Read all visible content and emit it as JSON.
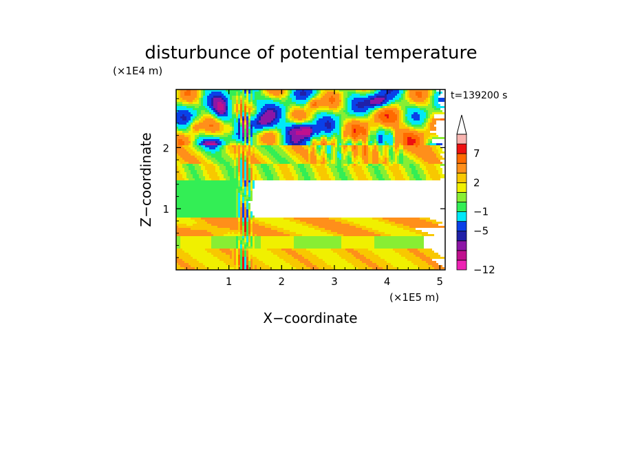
{
  "chart_data": {
    "type": "heatmap",
    "title": "disturbunce of potential temperature",
    "xlabel": "X−coordinate",
    "ylabel": "Z−coordinate",
    "x_unit": "(×1E5 m)",
    "y_unit": "(×1E4 m)",
    "time_label": "t=139200 s",
    "xlim": [
      0,
      5.1
    ],
    "ylim": [
      0,
      2.95
    ],
    "x_ticks": [
      {
        "value": 1,
        "label": "1"
      },
      {
        "value": 2,
        "label": "2"
      },
      {
        "value": 3,
        "label": "3"
      },
      {
        "value": 4,
        "label": "4"
      },
      {
        "value": 5,
        "label": "5"
      }
    ],
    "y_ticks": [
      {
        "value": 1,
        "label": "1"
      },
      {
        "value": 2,
        "label": "2"
      }
    ],
    "colorbar": {
      "extend_max": true,
      "ticks": [
        {
          "value": 7,
          "label": "7"
        },
        {
          "value": 2,
          "label": "2"
        },
        {
          "value": -1,
          "label": "−1"
        },
        {
          "value": -5,
          "label": "−5"
        },
        {
          "value": -12,
          "label": "−12"
        }
      ],
      "levels": [
        -12,
        -10,
        -8,
        -6,
        -5,
        -3,
        -1,
        0,
        1,
        2,
        3,
        5,
        7,
        9,
        11
      ],
      "colors": [
        "#ee22b4",
        "#c0108e",
        "#8c16a6",
        "#2020a8",
        "#0a40e8",
        "#00e8f8",
        "#33ee55",
        "#88ee33",
        "#f0f000",
        "#f8c800",
        "#ff8f1a",
        "#ff6a00",
        "#ee1010",
        "#f8b4b0"
      ]
    }
  }
}
